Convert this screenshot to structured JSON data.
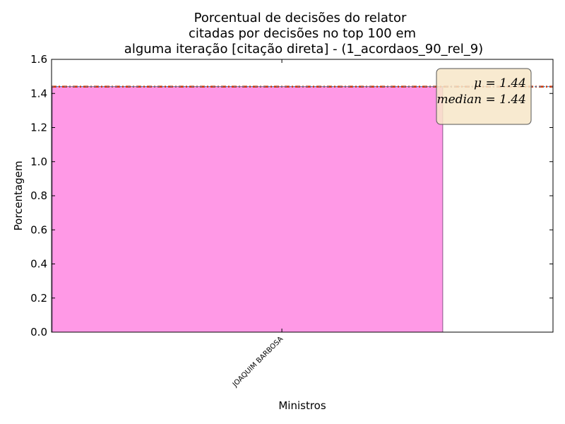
{
  "chart_data": {
    "type": "bar",
    "title_lines": [
      "Porcentual de decisões do relator",
      "citadas por decisões no top 100 em",
      "alguma iteração [citação direta] - (1_acordaos_90_rel_9)"
    ],
    "xlabel": "Ministros",
    "ylabel": "Porcentagem",
    "categories": [
      "JOAQUIM BARBOSA"
    ],
    "values": [
      1.44
    ],
    "ylim": [
      0,
      1.6
    ],
    "yticks": [
      "0.0",
      "0.2",
      "0.4",
      "0.6",
      "0.8",
      "1.0",
      "1.2",
      "1.4",
      "1.6"
    ],
    "mean": 1.44,
    "median": 1.44,
    "stats_box": {
      "mean_text": "μ = 1.44",
      "median_text": "median = 1.44"
    },
    "grid": false,
    "colors": {
      "bar": "#ff99e6",
      "bar_edge": "#8a5a8a",
      "mean_line": "#3a7fbf",
      "median_line": "#cc3300",
      "stats_box_fill": "#f7e6c8",
      "stats_box_edge": "#555555"
    }
  }
}
